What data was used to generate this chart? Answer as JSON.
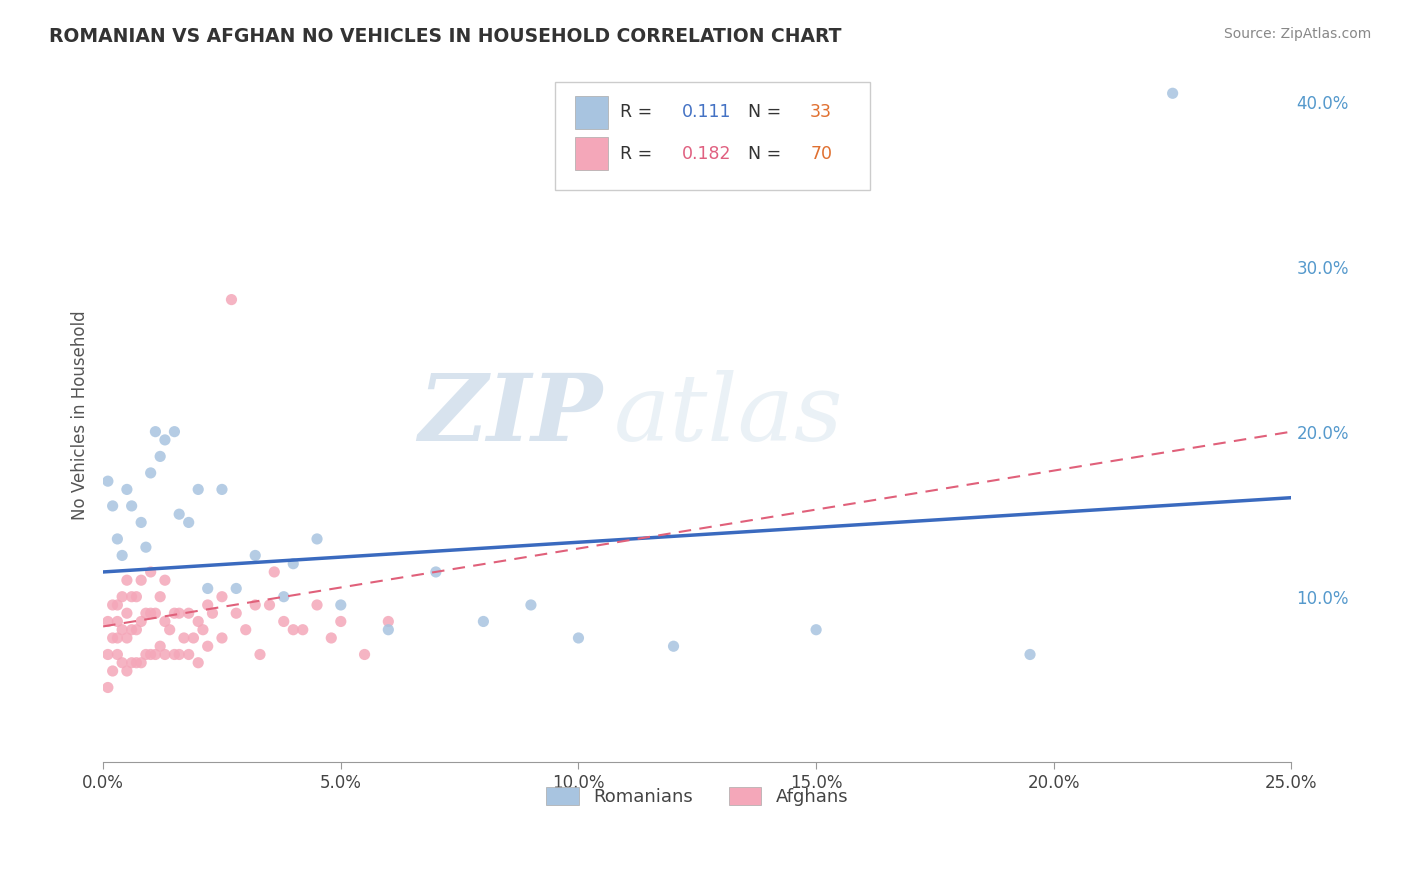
{
  "title": "ROMANIAN VS AFGHAN NO VEHICLES IN HOUSEHOLD CORRELATION CHART",
  "source": "Source: ZipAtlas.com",
  "ylabel": "No Vehicles in Household",
  "xlim": [
    0.0,
    0.25
  ],
  "ylim": [
    0.0,
    0.42
  ],
  "x_ticks": [
    0.0,
    0.05,
    0.1,
    0.15,
    0.2,
    0.25
  ],
  "x_tick_labels": [
    "0.0%",
    "5.0%",
    "10.0%",
    "15.0%",
    "20.0%",
    "25.0%"
  ],
  "y_ticks": [
    0.1,
    0.2,
    0.3,
    0.4
  ],
  "y_tick_labels": [
    "10.0%",
    "20.0%",
    "30.0%",
    "40.0%"
  ],
  "romanian_R": 0.111,
  "romanian_N": 33,
  "afghan_R": 0.182,
  "afghan_N": 70,
  "romanian_color": "#a8c4e0",
  "afghan_color": "#f4a7b9",
  "romanian_line_color": "#3a6abf",
  "afghan_line_color": "#e0607a",
  "watermark_zip": "ZIP",
  "watermark_atlas": "atlas",
  "romanian_x": [
    0.001,
    0.002,
    0.003,
    0.004,
    0.005,
    0.006,
    0.008,
    0.009,
    0.01,
    0.011,
    0.012,
    0.013,
    0.015,
    0.016,
    0.018,
    0.02,
    0.022,
    0.025,
    0.028,
    0.032,
    0.038,
    0.04,
    0.045,
    0.05,
    0.06,
    0.07,
    0.08,
    0.09,
    0.1,
    0.12,
    0.15,
    0.195,
    0.225
  ],
  "romanian_y": [
    0.17,
    0.155,
    0.135,
    0.125,
    0.165,
    0.155,
    0.145,
    0.13,
    0.175,
    0.2,
    0.185,
    0.195,
    0.2,
    0.15,
    0.145,
    0.165,
    0.105,
    0.165,
    0.105,
    0.125,
    0.1,
    0.12,
    0.135,
    0.095,
    0.08,
    0.115,
    0.085,
    0.095,
    0.075,
    0.07,
    0.08,
    0.065,
    0.405
  ],
  "afghan_x": [
    0.001,
    0.001,
    0.001,
    0.002,
    0.002,
    0.002,
    0.003,
    0.003,
    0.003,
    0.003,
    0.004,
    0.004,
    0.004,
    0.005,
    0.005,
    0.005,
    0.005,
    0.006,
    0.006,
    0.006,
    0.007,
    0.007,
    0.007,
    0.008,
    0.008,
    0.008,
    0.009,
    0.009,
    0.01,
    0.01,
    0.01,
    0.011,
    0.011,
    0.012,
    0.012,
    0.013,
    0.013,
    0.013,
    0.014,
    0.015,
    0.015,
    0.016,
    0.016,
    0.017,
    0.018,
    0.018,
    0.019,
    0.02,
    0.02,
    0.021,
    0.022,
    0.022,
    0.023,
    0.025,
    0.025,
    0.027,
    0.028,
    0.03,
    0.032,
    0.033,
    0.035,
    0.036,
    0.038,
    0.04,
    0.042,
    0.045,
    0.048,
    0.05,
    0.055,
    0.06
  ],
  "afghan_y": [
    0.085,
    0.065,
    0.045,
    0.075,
    0.055,
    0.095,
    0.085,
    0.065,
    0.095,
    0.075,
    0.06,
    0.08,
    0.1,
    0.075,
    0.055,
    0.09,
    0.11,
    0.06,
    0.08,
    0.1,
    0.06,
    0.08,
    0.1,
    0.06,
    0.085,
    0.11,
    0.065,
    0.09,
    0.065,
    0.09,
    0.115,
    0.065,
    0.09,
    0.07,
    0.1,
    0.065,
    0.085,
    0.11,
    0.08,
    0.065,
    0.09,
    0.065,
    0.09,
    0.075,
    0.065,
    0.09,
    0.075,
    0.06,
    0.085,
    0.08,
    0.07,
    0.095,
    0.09,
    0.075,
    0.1,
    0.28,
    0.09,
    0.08,
    0.095,
    0.065,
    0.095,
    0.115,
    0.085,
    0.08,
    0.08,
    0.095,
    0.075,
    0.085,
    0.065,
    0.085
  ],
  "rom_line_x0": 0.0,
  "rom_line_y0": 0.115,
  "rom_line_x1": 0.25,
  "rom_line_y1": 0.16,
  "afg_line_x0": 0.0,
  "afg_line_y0": 0.082,
  "afg_line_x1": 0.25,
  "afg_line_y1": 0.2
}
